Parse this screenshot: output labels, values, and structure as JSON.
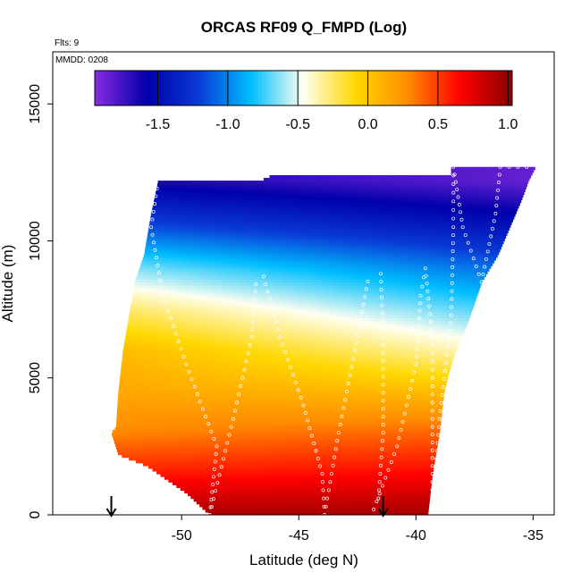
{
  "chart_data": {
    "type": "heatmap",
    "title": "ORCAS RF09 Q_FMPD (Log)",
    "subtitle_flights": "Flts: 9",
    "subtitle_date": "MMDD: 0208",
    "xlabel": "Latitude (deg N)",
    "ylabel": "Altitude (m)",
    "xlim": [
      -55.5,
      -34.1
    ],
    "ylim": [
      0,
      16900
    ],
    "x_ticks": [
      -50,
      -45,
      -40,
      -35
    ],
    "x_tick_labels": [
      "-50",
      "-45",
      "-40",
      "-35"
    ],
    "y_ticks": [
      0,
      5000,
      10000,
      15000
    ],
    "y_tick_labels": [
      "0",
      "5000",
      "10000",
      "15000"
    ],
    "colorbar": {
      "range": [
        -1.95,
        1.03
      ],
      "ticks": [
        -1.5,
        -1.0,
        -0.5,
        0.0,
        0.5,
        1.0
      ],
      "tick_labels": [
        "-1.5",
        "-1.0",
        "-0.5",
        "0.0",
        "0.5",
        "1.0"
      ],
      "colors": [
        "#8A2BE2",
        "#0000AA",
        "#0A3BD6",
        "#00BFFF",
        "#FFFFF0",
        "#FFD700",
        "#FF8C00",
        "#FF0000",
        "#8B0000"
      ]
    },
    "domain_left_edge": [
      [
        0,
        -48.8
      ],
      [
        800,
        -49.8
      ],
      [
        1800,
        -51.5
      ],
      [
        2200,
        -52.7
      ],
      [
        3000,
        -53.0
      ],
      [
        3200,
        -52.8
      ],
      [
        4500,
        -52.7
      ],
      [
        6000,
        -52.5
      ],
      [
        7500,
        -52.2
      ],
      [
        8500,
        -52.0
      ],
      [
        9500,
        -51.6
      ],
      [
        11000,
        -51.3
      ],
      [
        12200,
        -51.0
      ]
    ],
    "domain_right_edge": [
      [
        0,
        -39.5
      ],
      [
        1500,
        -39.3
      ],
      [
        3000,
        -39.0
      ],
      [
        4500,
        -38.8
      ],
      [
        5200,
        -38.6
      ],
      [
        6000,
        -38.3
      ],
      [
        7000,
        -37.8
      ],
      [
        8500,
        -37.2
      ],
      [
        9500,
        -36.5
      ],
      [
        10500,
        -36.0
      ],
      [
        11500,
        -35.5
      ],
      [
        12200,
        -35.2
      ],
      [
        12700,
        -34.9
      ]
    ],
    "domain_top_edge": [
      [
        -51.0,
        12200
      ],
      [
        -46.5,
        12200
      ],
      [
        -46.0,
        12400
      ],
      [
        -41.0,
        12400
      ],
      [
        -38.5,
        12400
      ],
      [
        -38.4,
        12700
      ],
      [
        -34.9,
        12700
      ]
    ],
    "profile": {
      "altitudes": [
        0,
        1500,
        3000,
        4500,
        6000,
        7500,
        9000,
        10500,
        12200
      ],
      "values_at_left": [
        0.95,
        0.6,
        0.3,
        0.15,
        0.05,
        -0.25,
        -0.65,
        -1.15,
        -1.65
      ],
      "values_at_right": [
        0.95,
        0.65,
        0.4,
        0.05,
        -0.35,
        -0.7,
        -1.05,
        -1.45,
        -1.85
      ]
    },
    "flight_tracks": [
      [
        [
          -48.8,
          0
        ],
        [
          -48.5,
          2500
        ],
        [
          -49.8,
          5500
        ],
        [
          -50.8,
          8000
        ],
        [
          -51.3,
          10500
        ],
        [
          -51.0,
          12200
        ]
      ],
      [
        [
          -48.8,
          0
        ],
        [
          -47.8,
          3500
        ],
        [
          -47.0,
          6500
        ],
        [
          -46.8,
          8700
        ]
      ],
      [
        [
          -46.5,
          8700
        ],
        [
          -45.8,
          6500
        ],
        [
          -44.8,
          4000
        ],
        [
          -44.0,
          1500
        ],
        [
          -43.9,
          0
        ]
      ],
      [
        [
          -43.9,
          0
        ],
        [
          -43.3,
          3000
        ],
        [
          -42.6,
          6000
        ],
        [
          -42.0,
          8800
        ]
      ],
      [
        [
          -41.5,
          8800
        ],
        [
          -41.4,
          6500
        ],
        [
          -41.4,
          3000
        ],
        [
          -41.6,
          600
        ],
        [
          -41.8,
          200
        ]
      ],
      [
        [
          -41.8,
          200
        ],
        [
          -40.8,
          2500
        ],
        [
          -40.0,
          5500
        ],
        [
          -39.8,
          8000
        ],
        [
          -39.6,
          9000
        ]
      ],
      [
        [
          -39.6,
          9000
        ],
        [
          -39.3,
          6500
        ],
        [
          -39.3,
          3500
        ],
        [
          -39.3,
          1500
        ],
        [
          -39.3,
          0
        ]
      ],
      [
        [
          -39.3,
          0
        ],
        [
          -39.0,
          3500
        ],
        [
          -38.5,
          7000
        ],
        [
          -38.4,
          10500
        ],
        [
          -38.4,
          12700
        ]
      ],
      [
        [
          -38.4,
          12700
        ],
        [
          -38.0,
          10500
        ],
        [
          -37.2,
          8500
        ],
        [
          -36.6,
          11000
        ],
        [
          -36.4,
          12700
        ],
        [
          -34.9,
          12700
        ]
      ]
    ],
    "arrows": [
      -53.0,
      -41.4
    ],
    "grid": false,
    "legend": "colorbar-top"
  }
}
